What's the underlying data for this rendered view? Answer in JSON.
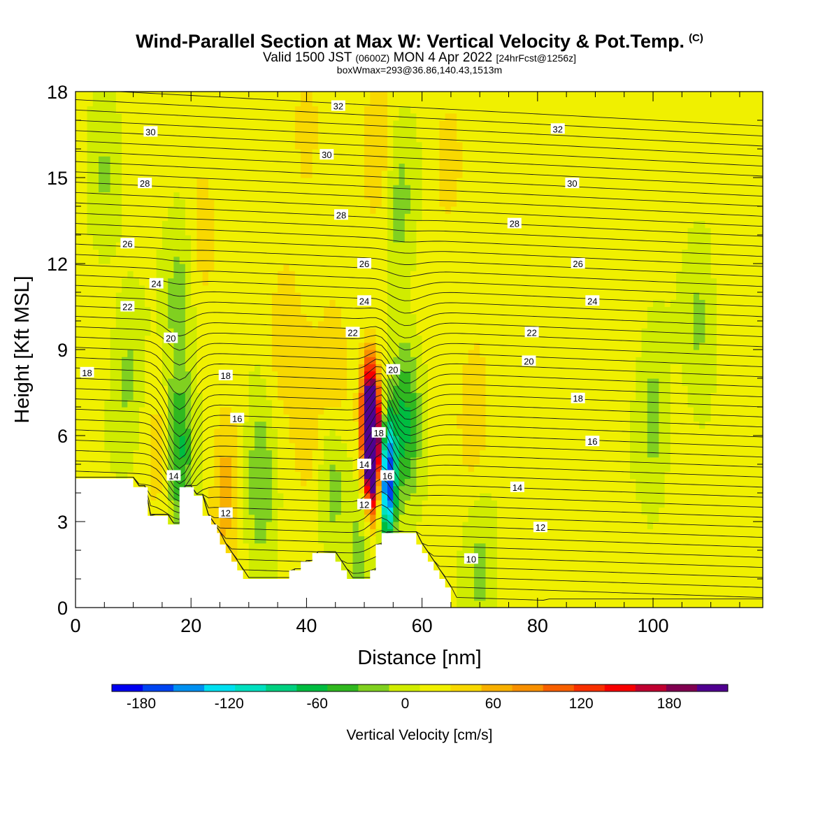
{
  "header": {
    "title_main": "Wind-Parallel Section at Max W: Vertical Velocity & Pot.Temp.",
    "title_mark": "(C)",
    "subtitle_a": "Valid 1500 JST",
    "subtitle_b": "(0600Z)",
    "subtitle_c": "MON 4 Apr 2022",
    "subtitle_d": "[24hrFcst@1256z]",
    "info": "boxWmax=293@36.86,140.43,1513m"
  },
  "chart_data": {
    "type": "heatmap",
    "xlabel": "Distance [nm]",
    "ylabel": "Height [Kft MSL]",
    "xlim": [
      0,
      119
    ],
    "ylim": [
      0,
      18
    ],
    "xticks": [
      0,
      20,
      40,
      60,
      80,
      100
    ],
    "yticks": [
      0,
      3,
      6,
      9,
      12,
      15,
      18
    ],
    "colorbar": {
      "label": "Vertical Velocity [cm/s]",
      "ticks": [
        -180,
        -120,
        -60,
        0,
        60,
        120,
        180
      ],
      "levels": [
        -200,
        -180,
        -160,
        -140,
        -120,
        -100,
        -80,
        -60,
        -40,
        -20,
        0,
        20,
        40,
        60,
        80,
        100,
        120,
        140,
        160,
        180,
        200,
        220
      ],
      "colors": [
        "#0000f0",
        "#0044f0",
        "#0090f0",
        "#00e0f0",
        "#00e0c0",
        "#00d080",
        "#00bc40",
        "#30b820",
        "#80d020",
        "#d0ec00",
        "#f0f000",
        "#f8d800",
        "#f8b000",
        "#f89000",
        "#f86000",
        "#f83000",
        "#f80000",
        "#c00030",
        "#800050",
        "#500090"
      ]
    },
    "terrain": {
      "x": [
        0,
        7,
        7.5,
        10,
        10,
        12.5,
        12.5,
        16,
        16,
        18,
        18,
        20.5,
        20.5,
        22,
        22,
        23.5,
        23.5,
        24.5,
        24.5,
        25,
        25,
        26,
        26,
        27,
        27,
        28,
        28,
        29,
        29,
        30,
        30,
        32,
        32,
        37,
        37,
        39,
        39,
        41,
        41,
        43,
        43,
        45,
        45,
        46,
        46,
        47,
        47,
        48,
        48,
        51,
        51,
        52,
        52,
        53,
        53,
        55,
        55,
        59,
        59,
        60,
        60,
        61,
        61,
        62,
        62,
        63,
        63,
        64,
        64,
        65,
        65
      ],
      "z": [
        4.5,
        4.5,
        4.5,
        4.5,
        4.2,
        4.2,
        3.2,
        3.2,
        2.9,
        2.9,
        4.2,
        4.2,
        3.9,
        3.9,
        3.2,
        3.2,
        2.9,
        2.9,
        2.6,
        2.6,
        2.2,
        2.2,
        1.9,
        1.9,
        1.6,
        1.6,
        1.3,
        1.3,
        1.0,
        1.0,
        1.0,
        1.0,
        1.0,
        1.0,
        1.3,
        1.3,
        1.6,
        1.6,
        1.9,
        1.9,
        1.9,
        1.9,
        1.6,
        1.6,
        1.3,
        1.3,
        1.0,
        1.0,
        1.0,
        1.0,
        1.3,
        1.3,
        2.2,
        2.2,
        2.6,
        2.6,
        2.6,
        2.6,
        2.2,
        2.2,
        1.9,
        1.9,
        1.6,
        1.6,
        1.3,
        1.3,
        1.0,
        1.0,
        0.7,
        0.7,
        0.3
      ]
    },
    "updrafts": [
      {
        "x": 51.5,
        "z": 5.5,
        "w": 293
      },
      {
        "x": 50.8,
        "z": 6.8,
        "w": 150
      },
      {
        "x": 47.5,
        "z": 3.0,
        "w": 40
      },
      {
        "x": 45,
        "z": 8,
        "w": 35
      },
      {
        "x": 36,
        "z": 9.5,
        "w": 30
      },
      {
        "x": 40,
        "z": 6.5,
        "w": 35
      },
      {
        "x": 69,
        "z": 7,
        "w": 30
      },
      {
        "x": 15.5,
        "z": 5.5,
        "w": 45
      },
      {
        "x": 26,
        "z": 4,
        "w": 45
      },
      {
        "x": 22,
        "z": 13.5,
        "w": 25
      },
      {
        "x": 40,
        "z": 16.5,
        "w": 25
      },
      {
        "x": 52.5,
        "z": 16,
        "w": 30
      },
      {
        "x": 64.5,
        "z": 15.5,
        "w": 20
      }
    ],
    "downdrafts": [
      {
        "x": 54,
        "z": 4.5,
        "w": -195
      },
      {
        "x": 57,
        "z": 6.5,
        "w": -70
      },
      {
        "x": 17.5,
        "z": 5.5,
        "w": -90
      },
      {
        "x": 32,
        "z": 4.5,
        "w": -50
      },
      {
        "x": 45,
        "z": 4.5,
        "w": -45
      },
      {
        "x": 48.5,
        "z": 2.5,
        "w": -60
      },
      {
        "x": 100,
        "z": 6.5,
        "w": -35
      },
      {
        "x": 108,
        "z": 10,
        "w": -30
      },
      {
        "x": 56,
        "z": 14,
        "w": -35
      },
      {
        "x": 5,
        "z": 15,
        "w": -25
      },
      {
        "x": 18,
        "z": 11,
        "w": -35
      },
      {
        "x": 9,
        "z": 8,
        "w": -30
      },
      {
        "x": 70,
        "z": 1.5,
        "w": -30
      }
    ],
    "contour_labels": [
      {
        "value": "32",
        "x": 45.5,
        "z": 17.5
      },
      {
        "value": "32",
        "x": 83.5,
        "z": 16.7
      },
      {
        "value": "30",
        "x": 13,
        "z": 16.6
      },
      {
        "value": "30",
        "x": 43.5,
        "z": 15.8
      },
      {
        "value": "30",
        "x": 86,
        "z": 14.8
      },
      {
        "value": "28",
        "x": 12,
        "z": 14.8
      },
      {
        "value": "28",
        "x": 46,
        "z": 13.7
      },
      {
        "value": "28",
        "x": 76,
        "z": 13.4
      },
      {
        "value": "26",
        "x": 9,
        "z": 12.7
      },
      {
        "value": "26",
        "x": 50,
        "z": 12
      },
      {
        "value": "26",
        "x": 87,
        "z": 12
      },
      {
        "value": "24",
        "x": 14,
        "z": 11.3
      },
      {
        "value": "24",
        "x": 50,
        "z": 10.7
      },
      {
        "value": "24",
        "x": 89.5,
        "z": 10.7
      },
      {
        "value": "22",
        "x": 9,
        "z": 10.5
      },
      {
        "value": "22",
        "x": 48,
        "z": 9.6
      },
      {
        "value": "22",
        "x": 79,
        "z": 9.6
      },
      {
        "value": "20",
        "x": 16.5,
        "z": 9.4
      },
      {
        "value": "20",
        "x": 55,
        "z": 8.3
      },
      {
        "value": "20",
        "x": 78.5,
        "z": 8.6
      },
      {
        "value": "18",
        "x": 2,
        "z": 8.2
      },
      {
        "value": "18",
        "x": 26,
        "z": 8.1
      },
      {
        "value": "18",
        "x": 52.5,
        "z": 6.1
      },
      {
        "value": "18",
        "x": 87,
        "z": 7.3
      },
      {
        "value": "16",
        "x": 28,
        "z": 6.6
      },
      {
        "value": "16",
        "x": 54,
        "z": 4.6
      },
      {
        "value": "16",
        "x": 89.5,
        "z": 5.8
      },
      {
        "value": "14",
        "x": 17,
        "z": 4.6
      },
      {
        "value": "14",
        "x": 50,
        "z": 5.0
      },
      {
        "value": "14",
        "x": 76.5,
        "z": 4.2
      },
      {
        "value": "12",
        "x": 26,
        "z": 3.3
      },
      {
        "value": "12",
        "x": 50,
        "z": 3.6
      },
      {
        "value": "12",
        "x": 80.5,
        "z": 2.8
      },
      {
        "value": "10",
        "x": 68.5,
        "z": 1.7
      }
    ]
  }
}
